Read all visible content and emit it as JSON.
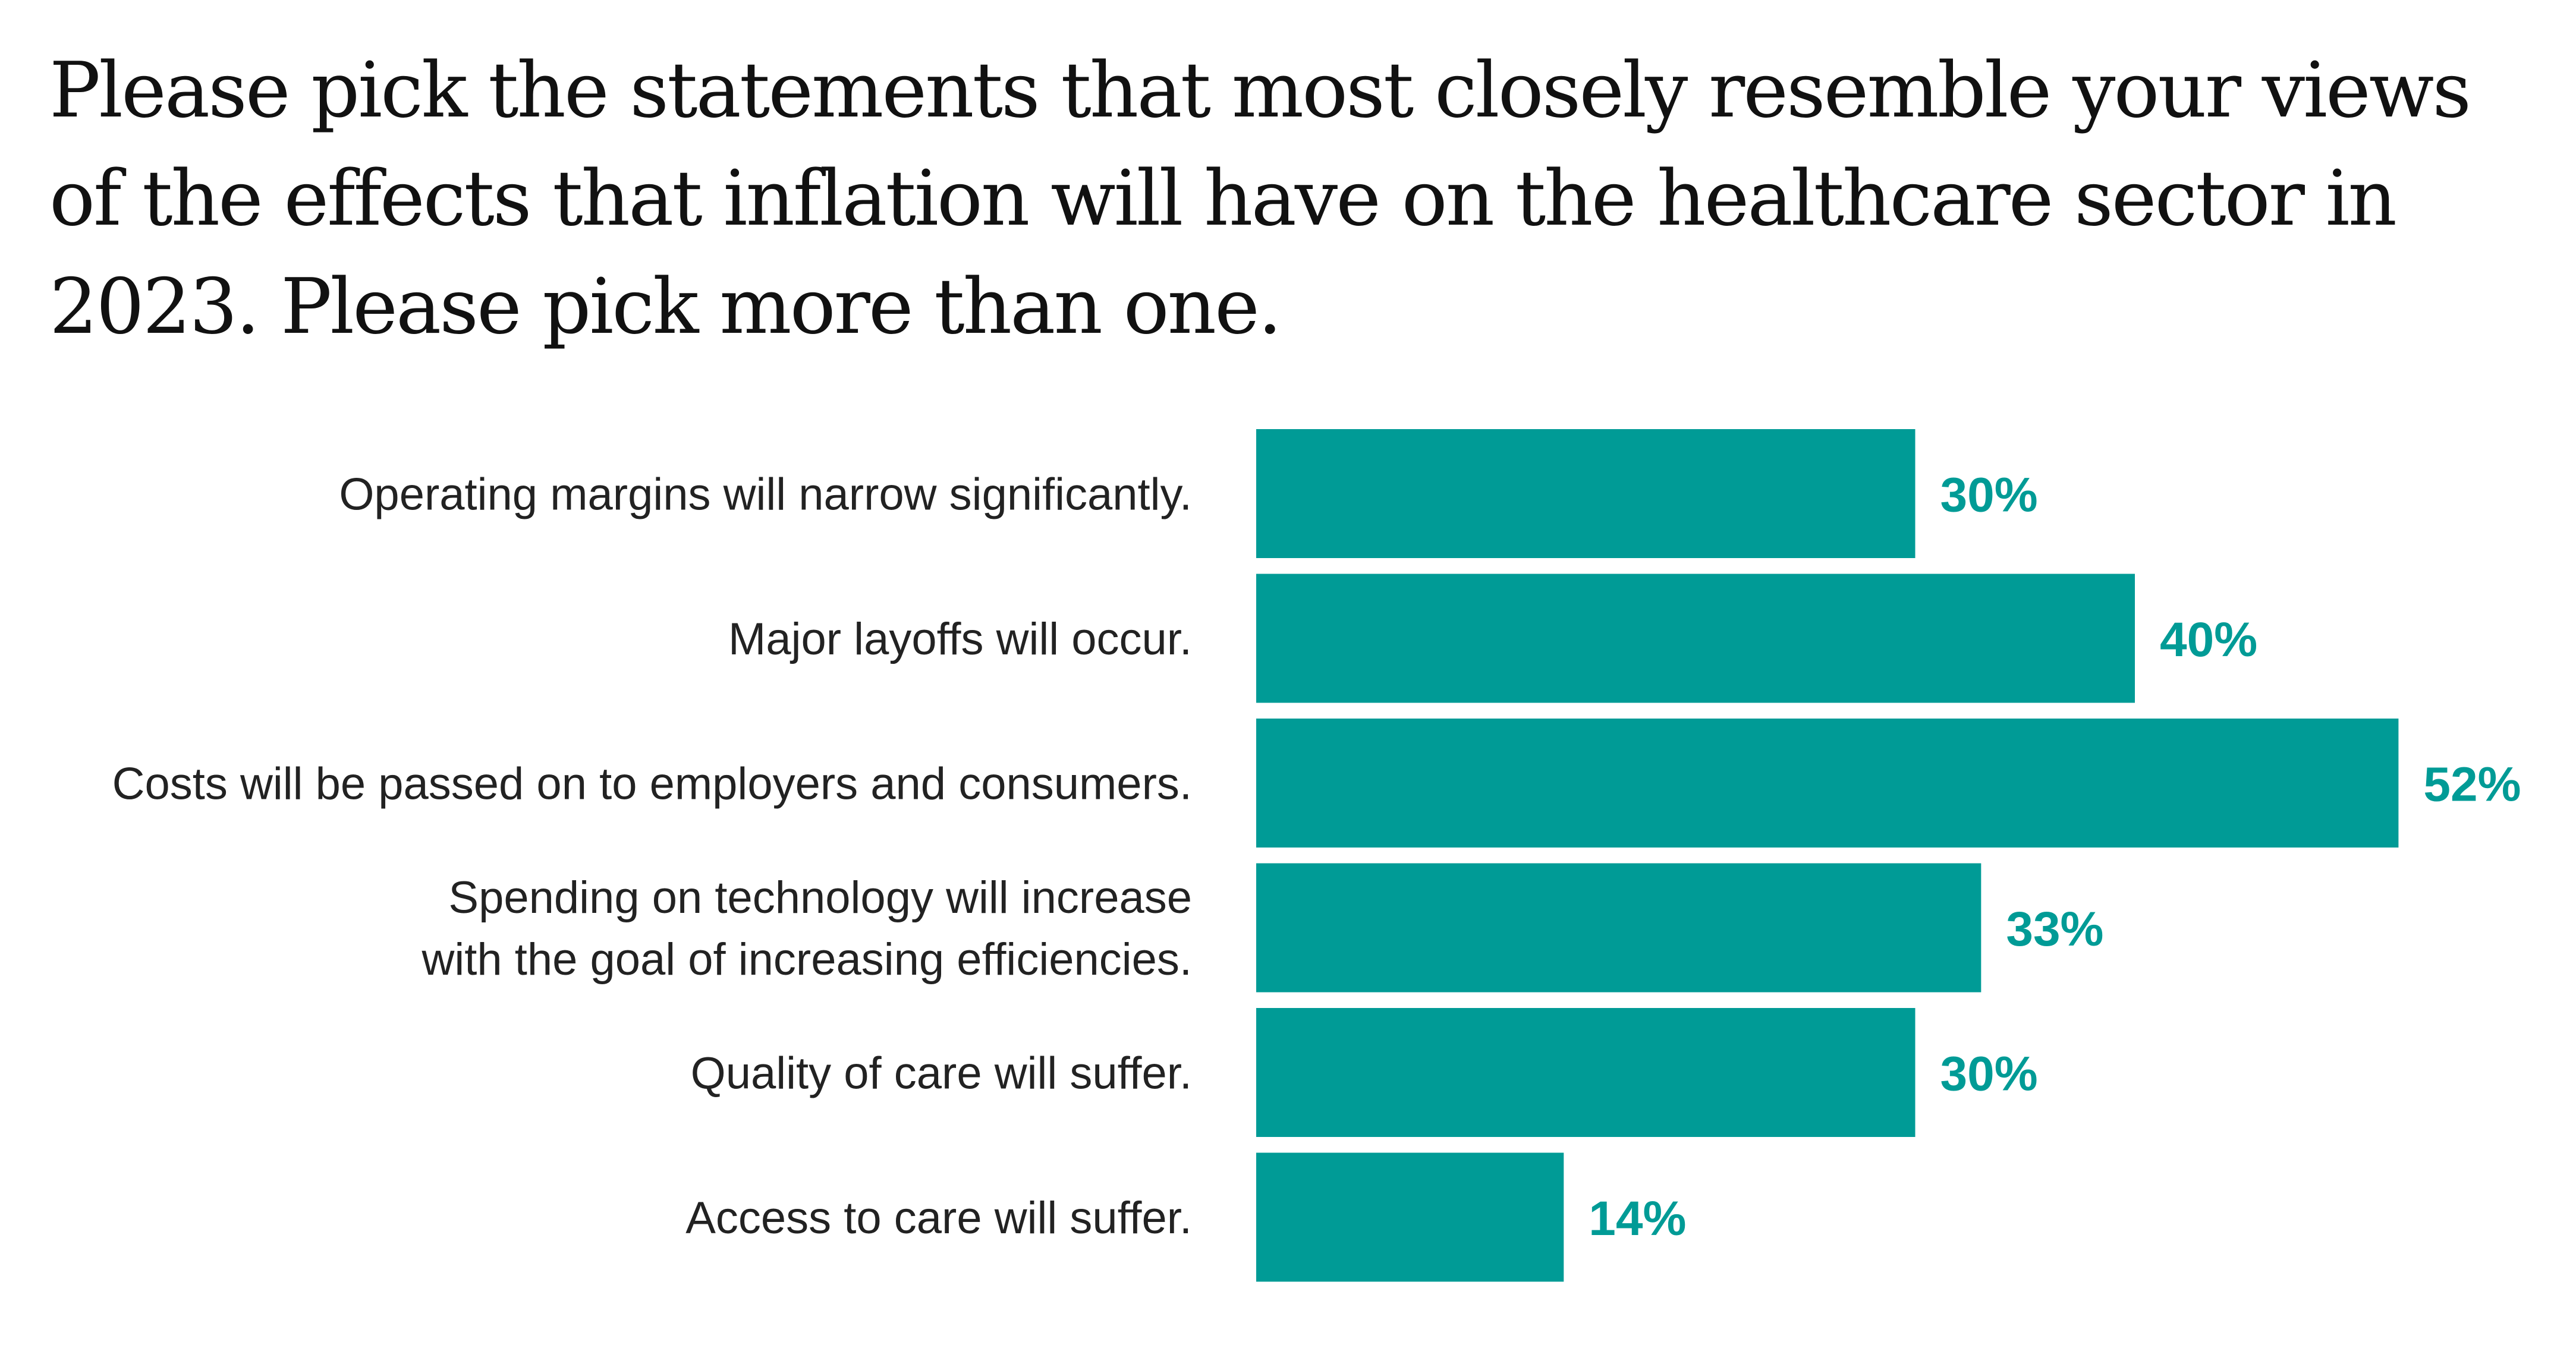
{
  "chart_data": {
    "type": "bar",
    "orientation": "horizontal",
    "title": "Please pick the statements that most closely resemble your views of the effects that inflation will have on the healthcare sector in 2023. Please pick more than one.",
    "categories": [
      [
        "Operating margins will narrow significantly."
      ],
      [
        "Major layoffs will occur."
      ],
      [
        "Costs will be passed on to employers and consumers."
      ],
      [
        "Spending on technology will increase",
        "with the goal of increasing efficiencies."
      ],
      [
        "Quality of care will suffer."
      ],
      [
        "Access to care will suffer."
      ]
    ],
    "values": [
      30,
      40,
      52,
      33,
      30,
      14
    ],
    "value_labels": [
      "30%",
      "40%",
      "52%",
      "33%",
      "30%",
      "14%"
    ],
    "xlabel": "",
    "ylabel": "",
    "xlim": [
      0,
      100
    ],
    "grid": false,
    "bar_color": "#009B96"
  }
}
